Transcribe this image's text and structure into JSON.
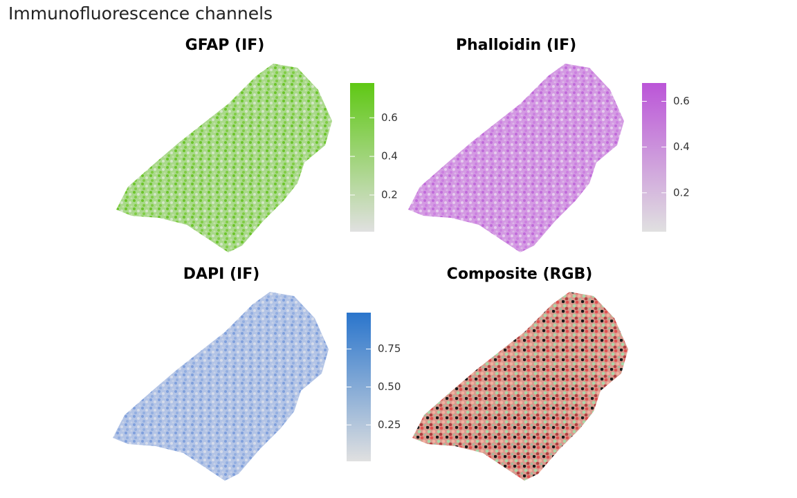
{
  "title": "Immunofluorescence channels",
  "panels": [
    {
      "title": "GFAP (IF)",
      "colorbar": {
        "lim": [
          0.01,
          0.78
        ],
        "ticks": [
          0.2,
          0.4,
          0.6
        ],
        "low_color": "#e0e0e0",
        "high_color": "#5fc814"
      }
    },
    {
      "title": "Phalloidin (IF)",
      "colorbar": {
        "lim": [
          0.03,
          0.68
        ],
        "ticks": [
          0.2,
          0.4,
          0.6
        ],
        "low_color": "#e0e0e0",
        "high_color": "#bb55d8"
      }
    },
    {
      "title": "DAPI (IF)",
      "colorbar": {
        "lim": [
          0.01,
          0.99
        ],
        "ticks": [
          0.25,
          {
            "value": 0.5,
            "label": "0.50"
          },
          0.75
        ],
        "low_color": "#e0e0e0",
        "high_color": "#2a75cc"
      }
    },
    {
      "title": "Composite (RGB)"
    }
  ]
}
